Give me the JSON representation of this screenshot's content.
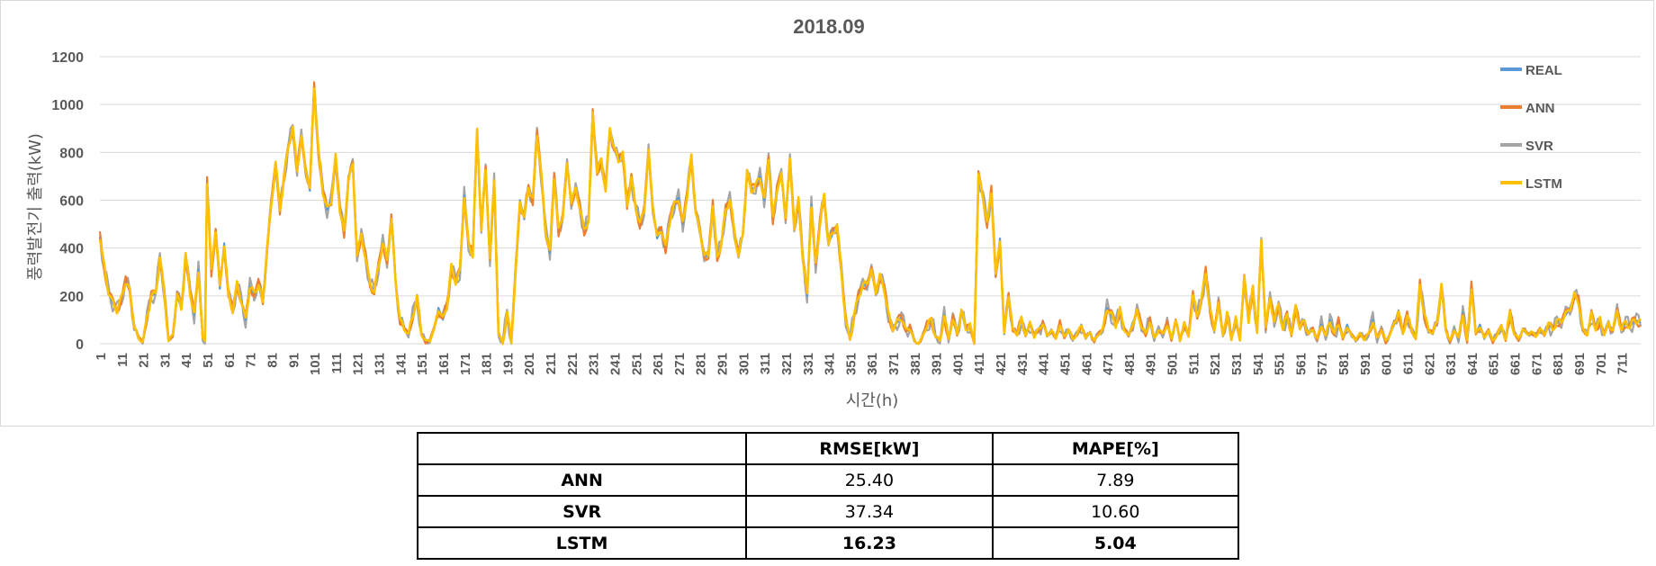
{
  "chart_data": {
    "type": "line",
    "title": "2018.09",
    "xlabel": "시간(h)",
    "ylabel": "풍력발전기 출력(kW)",
    "ylim": [
      0,
      1200
    ],
    "yticks": [
      0,
      200,
      400,
      600,
      800,
      1000,
      1200
    ],
    "xlim": [
      1,
      720
    ],
    "xticks": [
      1,
      11,
      21,
      31,
      41,
      51,
      61,
      71,
      81,
      91,
      101,
      111,
      121,
      131,
      141,
      151,
      161,
      171,
      181,
      191,
      201,
      211,
      221,
      231,
      241,
      251,
      261,
      271,
      281,
      291,
      301,
      311,
      321,
      331,
      341,
      351,
      361,
      371,
      381,
      391,
      401,
      411,
      421,
      431,
      441,
      451,
      461,
      471,
      481,
      491,
      501,
      511,
      521,
      531,
      541,
      551,
      561,
      571,
      581,
      591,
      601,
      611,
      621,
      631,
      641,
      651,
      661,
      671,
      681,
      691,
      701,
      711
    ],
    "grid": "horizontal",
    "legend_position": "right",
    "series": [
      {
        "name": "REAL",
        "color": "#5b9bd5"
      },
      {
        "name": "ANN",
        "color": "#ed7d31"
      },
      {
        "name": "SVR",
        "color": "#a5a5a5"
      },
      {
        "name": "LSTM",
        "color": "#ffc000"
      }
    ],
    "real_keypoints": [
      [
        1,
        450
      ],
      [
        3,
        320
      ],
      [
        5,
        220
      ],
      [
        7,
        170
      ],
      [
        9,
        140
      ],
      [
        11,
        190
      ],
      [
        13,
        260
      ],
      [
        15,
        220
      ],
      [
        17,
        80
      ],
      [
        19,
        20
      ],
      [
        21,
        10
      ],
      [
        23,
        110
      ],
      [
        25,
        200
      ],
      [
        27,
        210
      ],
      [
        29,
        360
      ],
      [
        31,
        220
      ],
      [
        33,
        10
      ],
      [
        35,
        40
      ],
      [
        37,
        200
      ],
      [
        39,
        150
      ],
      [
        41,
        370
      ],
      [
        43,
        220
      ],
      [
        45,
        120
      ],
      [
        47,
        310
      ],
      [
        49,
        20
      ],
      [
        50,
        10
      ],
      [
        51,
        680
      ],
      [
        53,
        300
      ],
      [
        55,
        480
      ],
      [
        57,
        230
      ],
      [
        59,
        420
      ],
      [
        61,
        200
      ],
      [
        63,
        140
      ],
      [
        65,
        250
      ],
      [
        67,
        180
      ],
      [
        69,
        100
      ],
      [
        71,
        240
      ],
      [
        73,
        210
      ],
      [
        75,
        250
      ],
      [
        77,
        170
      ],
      [
        79,
        400
      ],
      [
        81,
        580
      ],
      [
        83,
        760
      ],
      [
        85,
        560
      ],
      [
        87,
        700
      ],
      [
        89,
        830
      ],
      [
        91,
        900
      ],
      [
        93,
        730
      ],
      [
        95,
        860
      ],
      [
        97,
        740
      ],
      [
        99,
        640
      ],
      [
        101,
        1080
      ],
      [
        103,
        800
      ],
      [
        105,
        640
      ],
      [
        107,
        560
      ],
      [
        109,
        600
      ],
      [
        111,
        780
      ],
      [
        113,
        560
      ],
      [
        115,
        460
      ],
      [
        117,
        700
      ],
      [
        119,
        740
      ],
      [
        121,
        380
      ],
      [
        123,
        450
      ],
      [
        125,
        360
      ],
      [
        127,
        250
      ],
      [
        129,
        220
      ],
      [
        131,
        320
      ],
      [
        133,
        420
      ],
      [
        135,
        350
      ],
      [
        137,
        520
      ],
      [
        139,
        260
      ],
      [
        141,
        100
      ],
      [
        143,
        60
      ],
      [
        145,
        40
      ],
      [
        147,
        120
      ],
      [
        149,
        190
      ],
      [
        151,
        40
      ],
      [
        153,
        10
      ],
      [
        155,
        15
      ],
      [
        157,
        60
      ],
      [
        159,
        150
      ],
      [
        161,
        100
      ],
      [
        163,
        160
      ],
      [
        165,
        320
      ],
      [
        167,
        260
      ],
      [
        169,
        300
      ],
      [
        171,
        620
      ],
      [
        173,
        420
      ],
      [
        175,
        370
      ],
      [
        177,
        890
      ],
      [
        179,
        480
      ],
      [
        181,
        720
      ],
      [
        183,
        360
      ],
      [
        185,
        680
      ],
      [
        187,
        40
      ],
      [
        189,
        0
      ],
      [
        191,
        130
      ],
      [
        193,
        5
      ],
      [
        195,
        300
      ],
      [
        197,
        600
      ],
      [
        199,
        520
      ],
      [
        201,
        660
      ],
      [
        203,
        600
      ],
      [
        205,
        880
      ],
      [
        207,
        700
      ],
      [
        209,
        470
      ],
      [
        211,
        380
      ],
      [
        213,
        700
      ],
      [
        215,
        470
      ],
      [
        217,
        540
      ],
      [
        219,
        740
      ],
      [
        221,
        600
      ],
      [
        223,
        640
      ],
      [
        225,
        570
      ],
      [
        227,
        470
      ],
      [
        229,
        520
      ],
      [
        231,
        960
      ],
      [
        233,
        720
      ],
      [
        235,
        770
      ],
      [
        237,
        640
      ],
      [
        239,
        900
      ],
      [
        241,
        820
      ],
      [
        243,
        760
      ],
      [
        245,
        800
      ],
      [
        247,
        580
      ],
      [
        249,
        690
      ],
      [
        251,
        570
      ],
      [
        253,
        500
      ],
      [
        255,
        560
      ],
      [
        257,
        800
      ],
      [
        259,
        580
      ],
      [
        261,
        440
      ],
      [
        263,
        480
      ],
      [
        265,
        400
      ],
      [
        267,
        520
      ],
      [
        269,
        580
      ],
      [
        271,
        610
      ],
      [
        273,
        500
      ],
      [
        275,
        620
      ],
      [
        277,
        780
      ],
      [
        279,
        560
      ],
      [
        281,
        460
      ],
      [
        283,
        380
      ],
      [
        285,
        360
      ],
      [
        287,
        580
      ],
      [
        289,
        360
      ],
      [
        291,
        420
      ],
      [
        293,
        560
      ],
      [
        295,
        600
      ],
      [
        297,
        480
      ],
      [
        299,
        360
      ],
      [
        301,
        460
      ],
      [
        303,
        720
      ],
      [
        305,
        640
      ],
      [
        307,
        660
      ],
      [
        309,
        700
      ],
      [
        311,
        600
      ],
      [
        313,
        780
      ],
      [
        315,
        520
      ],
      [
        317,
        650
      ],
      [
        319,
        700
      ],
      [
        321,
        540
      ],
      [
        323,
        760
      ],
      [
        325,
        490
      ],
      [
        327,
        600
      ],
      [
        329,
        360
      ],
      [
        331,
        200
      ],
      [
        333,
        580
      ],
      [
        335,
        330
      ],
      [
        337,
        500
      ],
      [
        339,
        620
      ],
      [
        341,
        420
      ],
      [
        343,
        460
      ],
      [
        345,
        500
      ],
      [
        347,
        300
      ],
      [
        349,
        100
      ],
      [
        351,
        20
      ],
      [
        353,
        120
      ],
      [
        355,
        200
      ],
      [
        357,
        240
      ],
      [
        359,
        260
      ],
      [
        361,
        300
      ],
      [
        363,
        220
      ],
      [
        365,
        280
      ],
      [
        367,
        230
      ],
      [
        369,
        120
      ],
      [
        371,
        60
      ],
      [
        373,
        90
      ],
      [
        375,
        110
      ],
      [
        377,
        60
      ],
      [
        379,
        70
      ],
      [
        381,
        10
      ],
      [
        383,
        0
      ],
      [
        385,
        30
      ],
      [
        387,
        80
      ],
      [
        389,
        100
      ],
      [
        391,
        30
      ],
      [
        393,
        10
      ],
      [
        395,
        120
      ],
      [
        397,
        20
      ],
      [
        399,
        100
      ],
      [
        401,
        40
      ],
      [
        403,
        140
      ],
      [
        405,
        60
      ],
      [
        407,
        80
      ],
      [
        409,
        0
      ],
      [
        411,
        700
      ],
      [
        413,
        620
      ],
      [
        415,
        500
      ],
      [
        417,
        640
      ],
      [
        419,
        280
      ],
      [
        421,
        440
      ],
      [
        423,
        40
      ],
      [
        425,
        210
      ],
      [
        427,
        60
      ],
      [
        429,
        40
      ],
      [
        431,
        100
      ],
      [
        433,
        40
      ],
      [
        435,
        80
      ],
      [
        437,
        30
      ],
      [
        439,
        60
      ],
      [
        441,
        90
      ],
      [
        443,
        30
      ],
      [
        445,
        60
      ],
      [
        447,
        20
      ],
      [
        449,
        80
      ],
      [
        451,
        30
      ],
      [
        453,
        60
      ],
      [
        455,
        20
      ],
      [
        457,
        40
      ],
      [
        459,
        80
      ],
      [
        461,
        20
      ],
      [
        463,
        50
      ],
      [
        465,
        10
      ],
      [
        467,
        40
      ],
      [
        469,
        60
      ],
      [
        471,
        150
      ],
      [
        473,
        120
      ],
      [
        475,
        80
      ],
      [
        477,
        140
      ],
      [
        479,
        60
      ],
      [
        481,
        30
      ],
      [
        483,
        90
      ],
      [
        485,
        130
      ],
      [
        487,
        80
      ],
      [
        489,
        40
      ],
      [
        491,
        100
      ],
      [
        493,
        20
      ],
      [
        495,
        60
      ],
      [
        497,
        40
      ],
      [
        499,
        80
      ],
      [
        501,
        20
      ],
      [
        503,
        100
      ],
      [
        505,
        10
      ],
      [
        507,
        90
      ],
      [
        509,
        30
      ],
      [
        511,
        200
      ],
      [
        513,
        120
      ],
      [
        515,
        180
      ],
      [
        517,
        300
      ],
      [
        519,
        140
      ],
      [
        521,
        60
      ],
      [
        523,
        160
      ],
      [
        525,
        40
      ],
      [
        527,
        120
      ],
      [
        529,
        20
      ],
      [
        531,
        100
      ],
      [
        533,
        20
      ],
      [
        535,
        270
      ],
      [
        537,
        100
      ],
      [
        539,
        230
      ],
      [
        541,
        50
      ],
      [
        543,
        420
      ],
      [
        545,
        80
      ],
      [
        547,
        180
      ],
      [
        549,
        100
      ],
      [
        551,
        160
      ],
      [
        553,
        60
      ],
      [
        555,
        120
      ],
      [
        557,
        40
      ],
      [
        559,
        160
      ],
      [
        561,
        60
      ],
      [
        563,
        100
      ],
      [
        565,
        40
      ],
      [
        567,
        60
      ],
      [
        569,
        20
      ],
      [
        571,
        80
      ],
      [
        573,
        30
      ],
      [
        575,
        100
      ],
      [
        577,
        40
      ],
      [
        579,
        90
      ],
      [
        581,
        20
      ],
      [
        583,
        80
      ],
      [
        585,
        30
      ],
      [
        587,
        20
      ],
      [
        589,
        40
      ],
      [
        591,
        20
      ],
      [
        593,
        40
      ],
      [
        595,
        100
      ],
      [
        597,
        20
      ],
      [
        599,
        60
      ],
      [
        601,
        10
      ],
      [
        603,
        40
      ],
      [
        605,
        80
      ],
      [
        607,
        140
      ],
      [
        609,
        40
      ],
      [
        611,
        120
      ],
      [
        613,
        60
      ],
      [
        615,
        20
      ],
      [
        617,
        250
      ],
      [
        619,
        120
      ],
      [
        621,
        60
      ],
      [
        623,
        40
      ],
      [
        625,
        100
      ],
      [
        627,
        240
      ],
      [
        629,
        60
      ],
      [
        631,
        10
      ],
      [
        633,
        60
      ],
      [
        635,
        20
      ],
      [
        637,
        130
      ],
      [
        639,
        10
      ],
      [
        641,
        240
      ],
      [
        643,
        40
      ],
      [
        645,
        80
      ],
      [
        647,
        20
      ],
      [
        649,
        60
      ],
      [
        651,
        10
      ],
      [
        653,
        40
      ],
      [
        655,
        70
      ],
      [
        657,
        20
      ],
      [
        659,
        130
      ],
      [
        661,
        40
      ],
      [
        663,
        20
      ],
      [
        665,
        60
      ],
      [
        667,
        40
      ],
      [
        669,
        50
      ],
      [
        671,
        30
      ],
      [
        673,
        60
      ],
      [
        675,
        40
      ],
      [
        677,
        80
      ],
      [
        679,
        60
      ],
      [
        681,
        90
      ],
      [
        683,
        100
      ],
      [
        685,
        120
      ],
      [
        687,
        150
      ],
      [
        689,
        200
      ],
      [
        691,
        180
      ],
      [
        693,
        60
      ],
      [
        695,
        40
      ],
      [
        697,
        120
      ],
      [
        699,
        60
      ],
      [
        701,
        100
      ],
      [
        703,
        40
      ],
      [
        705,
        80
      ],
      [
        707,
        60
      ],
      [
        709,
        130
      ],
      [
        711,
        60
      ],
      [
        713,
        90
      ],
      [
        715,
        70
      ],
      [
        717,
        100
      ],
      [
        720,
        90
      ]
    ]
  },
  "table": {
    "headers": [
      "",
      "RMSE[kW]",
      "MAPE[%]"
    ],
    "rows": [
      {
        "model": "ANN",
        "rmse": "25.40",
        "mape": "7.89"
      },
      {
        "model": "SVR",
        "rmse": "37.34",
        "mape": "10.60"
      },
      {
        "model": "LSTM",
        "rmse": "16.23",
        "mape": "5.04"
      }
    ]
  }
}
